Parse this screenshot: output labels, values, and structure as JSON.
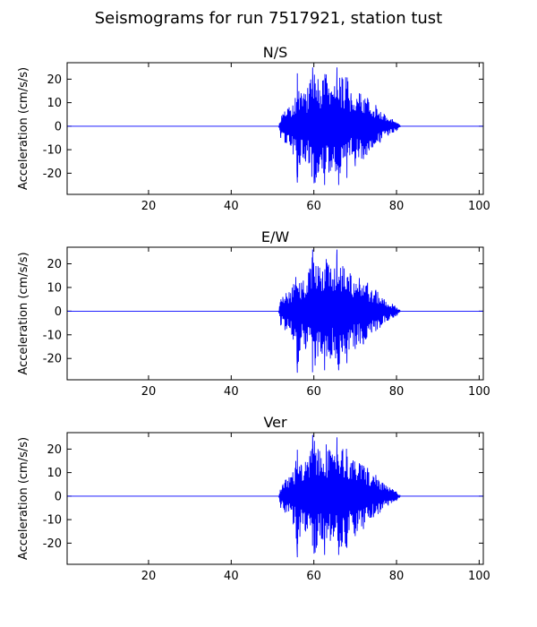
{
  "title": "Seismograms for run 7517921, station tust",
  "chart_data": [
    {
      "type": "line",
      "title": "N/S",
      "xlabel": "",
      "ylabel": "Acceleration (cm/s/s)",
      "xlim": [
        0.3,
        101
      ],
      "ylim": [
        -29,
        27
      ],
      "xticks": [
        20,
        40,
        60,
        80,
        100
      ],
      "yticks": [
        -20,
        -10,
        0,
        10,
        20
      ],
      "grid": false,
      "color": "#0000ff",
      "x": [
        0.3,
        51.5,
        52.0,
        52.5,
        53.0,
        54.0,
        55.0,
        55.5,
        56.0,
        57.0,
        58.0,
        59.0,
        59.7,
        60.3,
        61.0,
        62.0,
        62.6,
        63.0,
        64.0,
        65.0,
        65.6,
        66.0,
        67.0,
        68.0,
        69.0,
        70.0,
        71.0,
        72.0,
        73.0,
        74.0,
        75.0,
        76.0,
        77.0,
        78.0,
        79.0,
        80.0,
        81.0,
        101
      ],
      "values": [
        0,
        0,
        -5,
        5,
        -7,
        8,
        -12,
        12,
        -24,
        13,
        -15,
        18,
        25,
        -24,
        20,
        -18,
        -25,
        22,
        -19,
        17,
        25,
        -25,
        20,
        -22,
        14,
        -17,
        14,
        -14,
        12,
        -9,
        9,
        -7,
        5,
        -4,
        3,
        -2,
        0,
        0
      ]
    },
    {
      "type": "line",
      "title": "E/W",
      "xlabel": "",
      "ylabel": "Acceleration (cm/s/s)",
      "xlim": [
        0.3,
        101
      ],
      "ylim": [
        -29,
        27
      ],
      "xticks": [
        20,
        40,
        60,
        80,
        100
      ],
      "yticks": [
        -20,
        -10,
        0,
        10,
        20
      ],
      "grid": false,
      "color": "#0000ff",
      "x": [
        0.3,
        51.5,
        52.0,
        52.5,
        53.0,
        54.0,
        55.0,
        55.5,
        56.0,
        57.0,
        58.0,
        59.0,
        59.7,
        60.3,
        61.0,
        62.0,
        62.6,
        63.0,
        64.0,
        65.0,
        65.6,
        66.0,
        67.0,
        68.0,
        69.0,
        70.0,
        71.0,
        72.0,
        73.0,
        74.0,
        75.0,
        76.0,
        77.0,
        78.0,
        79.0,
        80.0,
        81.0,
        101
      ],
      "values": [
        0,
        0,
        -6,
        6,
        -8,
        8,
        -12,
        11,
        -26,
        12,
        -16,
        18,
        26,
        -23,
        19,
        -18,
        -25,
        22,
        -20,
        18,
        26,
        -25,
        19,
        -22,
        15,
        -16,
        14,
        -14,
        12,
        -9,
        9,
        -7,
        5,
        -4,
        3,
        -2,
        0,
        0
      ]
    },
    {
      "type": "line",
      "title": "Ver",
      "xlabel": "",
      "ylabel": "Acceleration (cm/s/s)",
      "xlim": [
        0.3,
        101
      ],
      "ylim": [
        -29,
        27
      ],
      "xticks": [
        20,
        40,
        60,
        80,
        100
      ],
      "yticks": [
        -20,
        -10,
        0,
        10,
        20
      ],
      "grid": false,
      "color": "#0000ff",
      "x": [
        0.3,
        51.5,
        52.0,
        52.5,
        53.0,
        54.0,
        55.0,
        55.5,
        56.0,
        57.0,
        58.0,
        59.0,
        59.7,
        60.3,
        61.0,
        62.0,
        62.6,
        63.0,
        64.0,
        65.0,
        65.6,
        66.0,
        67.0,
        68.0,
        69.0,
        70.0,
        71.0,
        72.0,
        73.0,
        74.0,
        75.0,
        76.0,
        77.0,
        78.0,
        79.0,
        80.0,
        81.0,
        101
      ],
      "values": [
        0,
        0,
        -5,
        5,
        -7,
        8,
        -12,
        12,
        -26,
        13,
        -15,
        17,
        26,
        -24,
        20,
        -18,
        -25,
        22,
        -19,
        17,
        25,
        -25,
        20,
        -22,
        14,
        -17,
        14,
        -14,
        12,
        -9,
        9,
        -7,
        5,
        -4,
        3,
        -2,
        0,
        0
      ]
    }
  ]
}
